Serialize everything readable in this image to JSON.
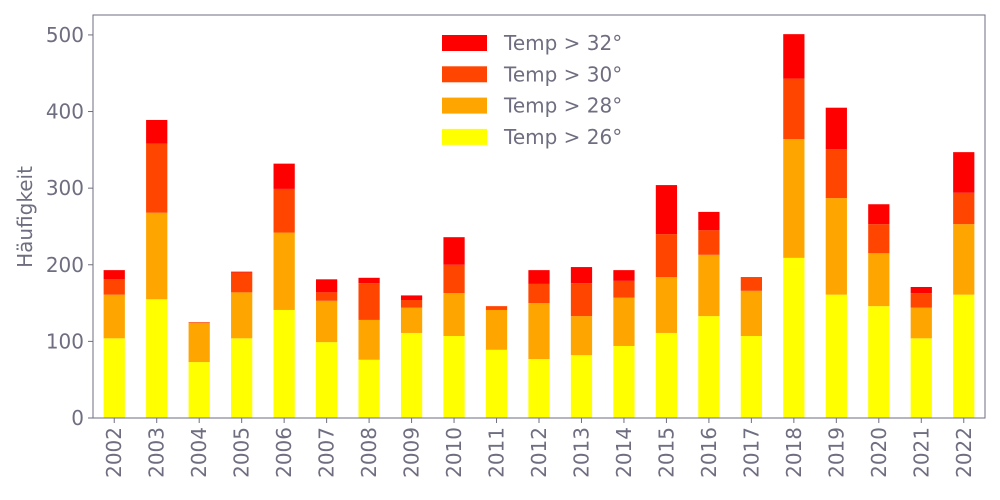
{
  "chart_data": {
    "type": "bar",
    "stacked": true,
    "title": "",
    "xlabel": "",
    "ylabel": "Häufigkeit",
    "ylim": [
      0,
      526
    ],
    "yticks": [
      0,
      100,
      200,
      300,
      400,
      500
    ],
    "grid": false,
    "legend_position": "top-center",
    "categories": [
      "2002",
      "2003",
      "2004",
      "2005",
      "2006",
      "2007",
      "2008",
      "2009",
      "2010",
      "2011",
      "2012",
      "2013",
      "2014",
      "2015",
      "2016",
      "2017",
      "2018",
      "2019",
      "2020",
      "2021",
      "2022"
    ],
    "series": [
      {
        "name": "Temp > 26°",
        "color": "#ffff00",
        "values": [
          104,
          155,
          73,
          104,
          141,
          99,
          76,
          111,
          107,
          89,
          77,
          82,
          94,
          111,
          133,
          107,
          209,
          161,
          146,
          104,
          161
        ]
      },
      {
        "name": "Temp > 28°",
        "color": "#ffa500",
        "values": [
          57,
          113,
          51,
          60,
          101,
          54,
          52,
          33,
          56,
          52,
          73,
          51,
          63,
          73,
          80,
          59,
          155,
          126,
          69,
          40,
          92
        ]
      },
      {
        "name": "Temp > 30°",
        "color": "#ff4500",
        "values": [
          20,
          90,
          1,
          26,
          57,
          11,
          48,
          10,
          37,
          5,
          25,
          43,
          22,
          56,
          32,
          18,
          79,
          64,
          38,
          19,
          41
        ]
      },
      {
        "name": "Temp > 32°",
        "color": "#ff0000",
        "values": [
          12,
          31,
          0,
          1,
          33,
          17,
          7,
          6,
          36,
          0,
          18,
          21,
          14,
          64,
          24,
          0,
          58,
          54,
          26,
          8,
          53
        ]
      }
    ]
  }
}
